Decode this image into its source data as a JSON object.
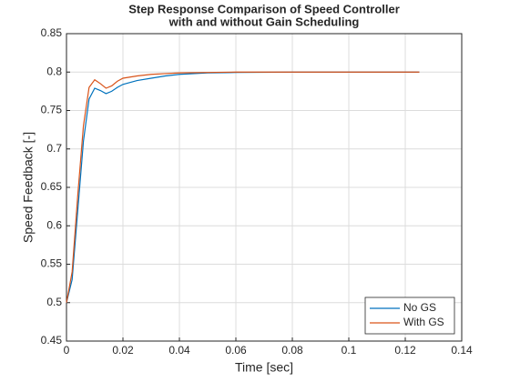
{
  "chart_data": {
    "type": "line",
    "title": [
      "Step Response Comparison of Speed Controller",
      "with and without Gain Scheduling"
    ],
    "x_label": "Time [sec]",
    "y_label": "Speed Feedback [-]",
    "x": [
      0,
      0.002,
      0.004,
      0.006,
      0.008,
      0.01,
      0.012,
      0.014,
      0.016,
      0.018,
      0.02,
      0.025,
      0.03,
      0.035,
      0.04,
      0.05,
      0.06,
      0.08,
      0.1,
      0.125
    ],
    "series": [
      {
        "name": "No GS",
        "color": "#0072BD",
        "values": [
          0.5,
          0.53,
          0.62,
          0.71,
          0.765,
          0.779,
          0.776,
          0.772,
          0.775,
          0.78,
          0.784,
          0.789,
          0.792,
          0.795,
          0.797,
          0.799,
          0.7995,
          0.8,
          0.8,
          0.8
        ]
      },
      {
        "name": "With GS",
        "color": "#D95319",
        "values": [
          0.5,
          0.54,
          0.64,
          0.73,
          0.78,
          0.79,
          0.785,
          0.779,
          0.782,
          0.788,
          0.792,
          0.795,
          0.797,
          0.798,
          0.799,
          0.7995,
          0.8,
          0.8,
          0.8,
          0.8
        ]
      }
    ],
    "xlim": [
      0,
      0.14
    ],
    "xticks": [
      0,
      0.02,
      0.04,
      0.06,
      0.08,
      0.1,
      0.12,
      0.14
    ],
    "ylim": [
      0.45,
      0.85
    ],
    "yticks": [
      0.45,
      0.5,
      0.55,
      0.6,
      0.65,
      0.7,
      0.75,
      0.8,
      0.85
    ],
    "grid": true,
    "legend": "lower right"
  }
}
